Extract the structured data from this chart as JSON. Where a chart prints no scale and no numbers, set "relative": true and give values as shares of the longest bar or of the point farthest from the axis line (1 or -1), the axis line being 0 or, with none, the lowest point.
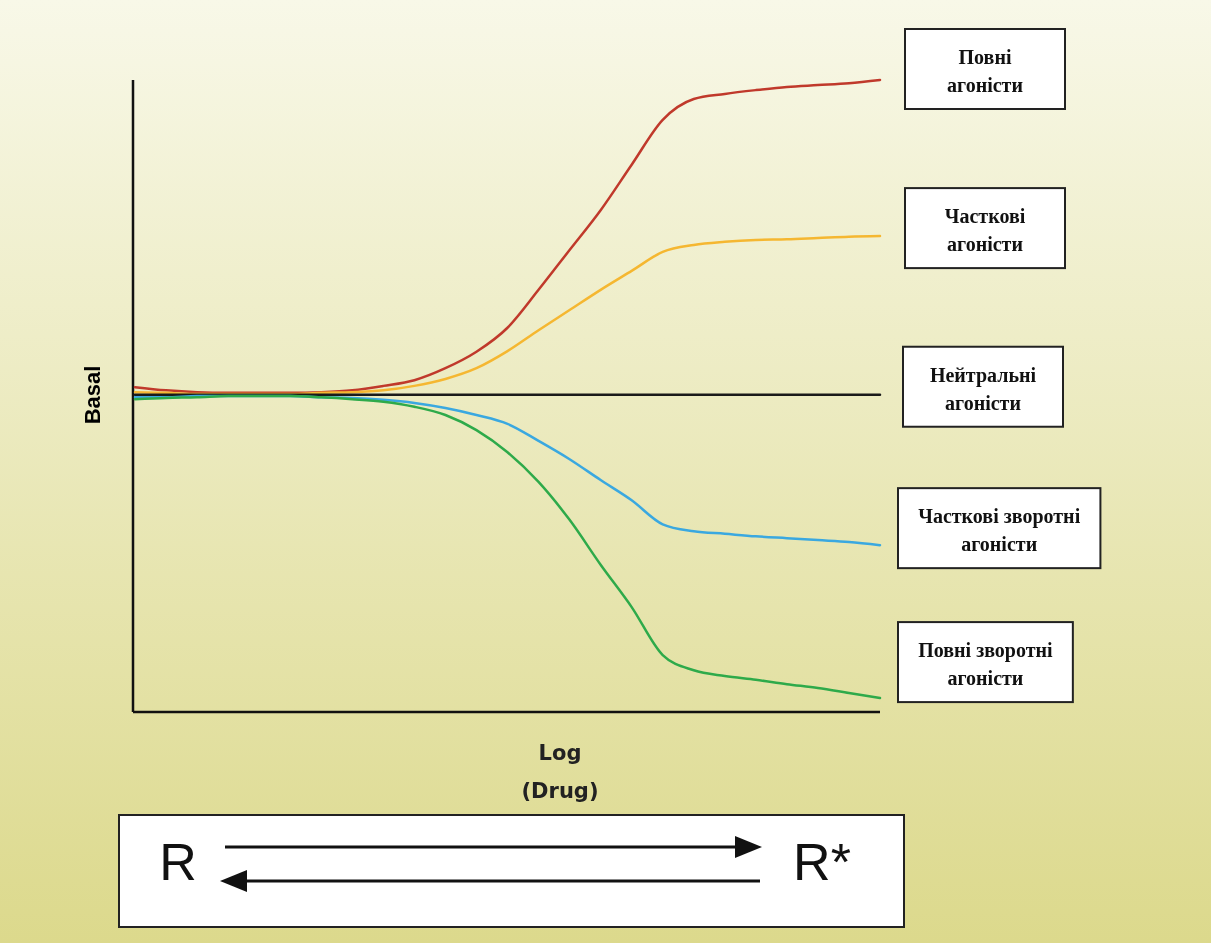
{
  "chart_data": {
    "type": "line",
    "relative": true,
    "ylabel": "Basal",
    "xlabel": "Log (Drug)",
    "categories": [
      null,
      null,
      null,
      null,
      null,
      null,
      null,
      null,
      null,
      null,
      null,
      null,
      null,
      null,
      null,
      null,
      null,
      null,
      null,
      null,
      null,
      null,
      null,
      null,
      null
    ],
    "series": [
      {
        "name": "Повні агоністи",
        "color": "#c0392b",
        "values": [
          0.514,
          0.509,
          0.506,
          0.505,
          0.505,
          0.505,
          0.506,
          0.509,
          0.516,
          0.525,
          0.544,
          0.57,
          0.608,
          0.668,
          0.731,
          0.794,
          0.866,
          0.937,
          0.97,
          0.978,
          0.984,
          0.989,
          0.992,
          0.995,
          1
        ]
      },
      {
        "name": "Часткові агоністи",
        "color": "#f5b731",
        "values": [
          0.506,
          0.505,
          0.503,
          0.503,
          0.503,
          0.503,
          0.505,
          0.506,
          0.509,
          0.516,
          0.527,
          0.544,
          0.571,
          0.604,
          0.636,
          0.668,
          0.698,
          0.728,
          0.739,
          0.744,
          0.747,
          0.748,
          0.75,
          0.752,
          0.753
        ]
      },
      {
        "name": "Нейтральні агоністи",
        "color": "#1a1a1a",
        "values": [
          0.502,
          0.502,
          0.502,
          0.502,
          0.502,
          0.502,
          0.502,
          0.502,
          0.502,
          0.502,
          0.502,
          0.502,
          0.502,
          0.502,
          0.502,
          0.502,
          0.502,
          0.502,
          0.502,
          0.502,
          0.502,
          0.502,
          0.502,
          0.502,
          0.502
        ]
      },
      {
        "name": "Часткові зворотні агоністи",
        "color": "#3aa8e0",
        "values": [
          0.498,
          0.498,
          0.5,
          0.5,
          0.5,
          0.5,
          0.498,
          0.497,
          0.494,
          0.489,
          0.481,
          0.47,
          0.456,
          0.429,
          0.4,
          0.367,
          0.335,
          0.297,
          0.286,
          0.282,
          0.278,
          0.275,
          0.272,
          0.269,
          0.264
        ]
      },
      {
        "name": "Повні зворотні агоністи",
        "color": "#2eaa4a",
        "values": [
          0.495,
          0.497,
          0.498,
          0.5,
          0.5,
          0.5,
          0.498,
          0.495,
          0.491,
          0.483,
          0.47,
          0.446,
          0.411,
          0.364,
          0.304,
          0.233,
          0.166,
          0.09,
          0.066,
          0.057,
          0.051,
          0.044,
          0.038,
          0.03,
          0.022
        ]
      }
    ],
    "annotations": [
      "R",
      "R*"
    ]
  }
}
